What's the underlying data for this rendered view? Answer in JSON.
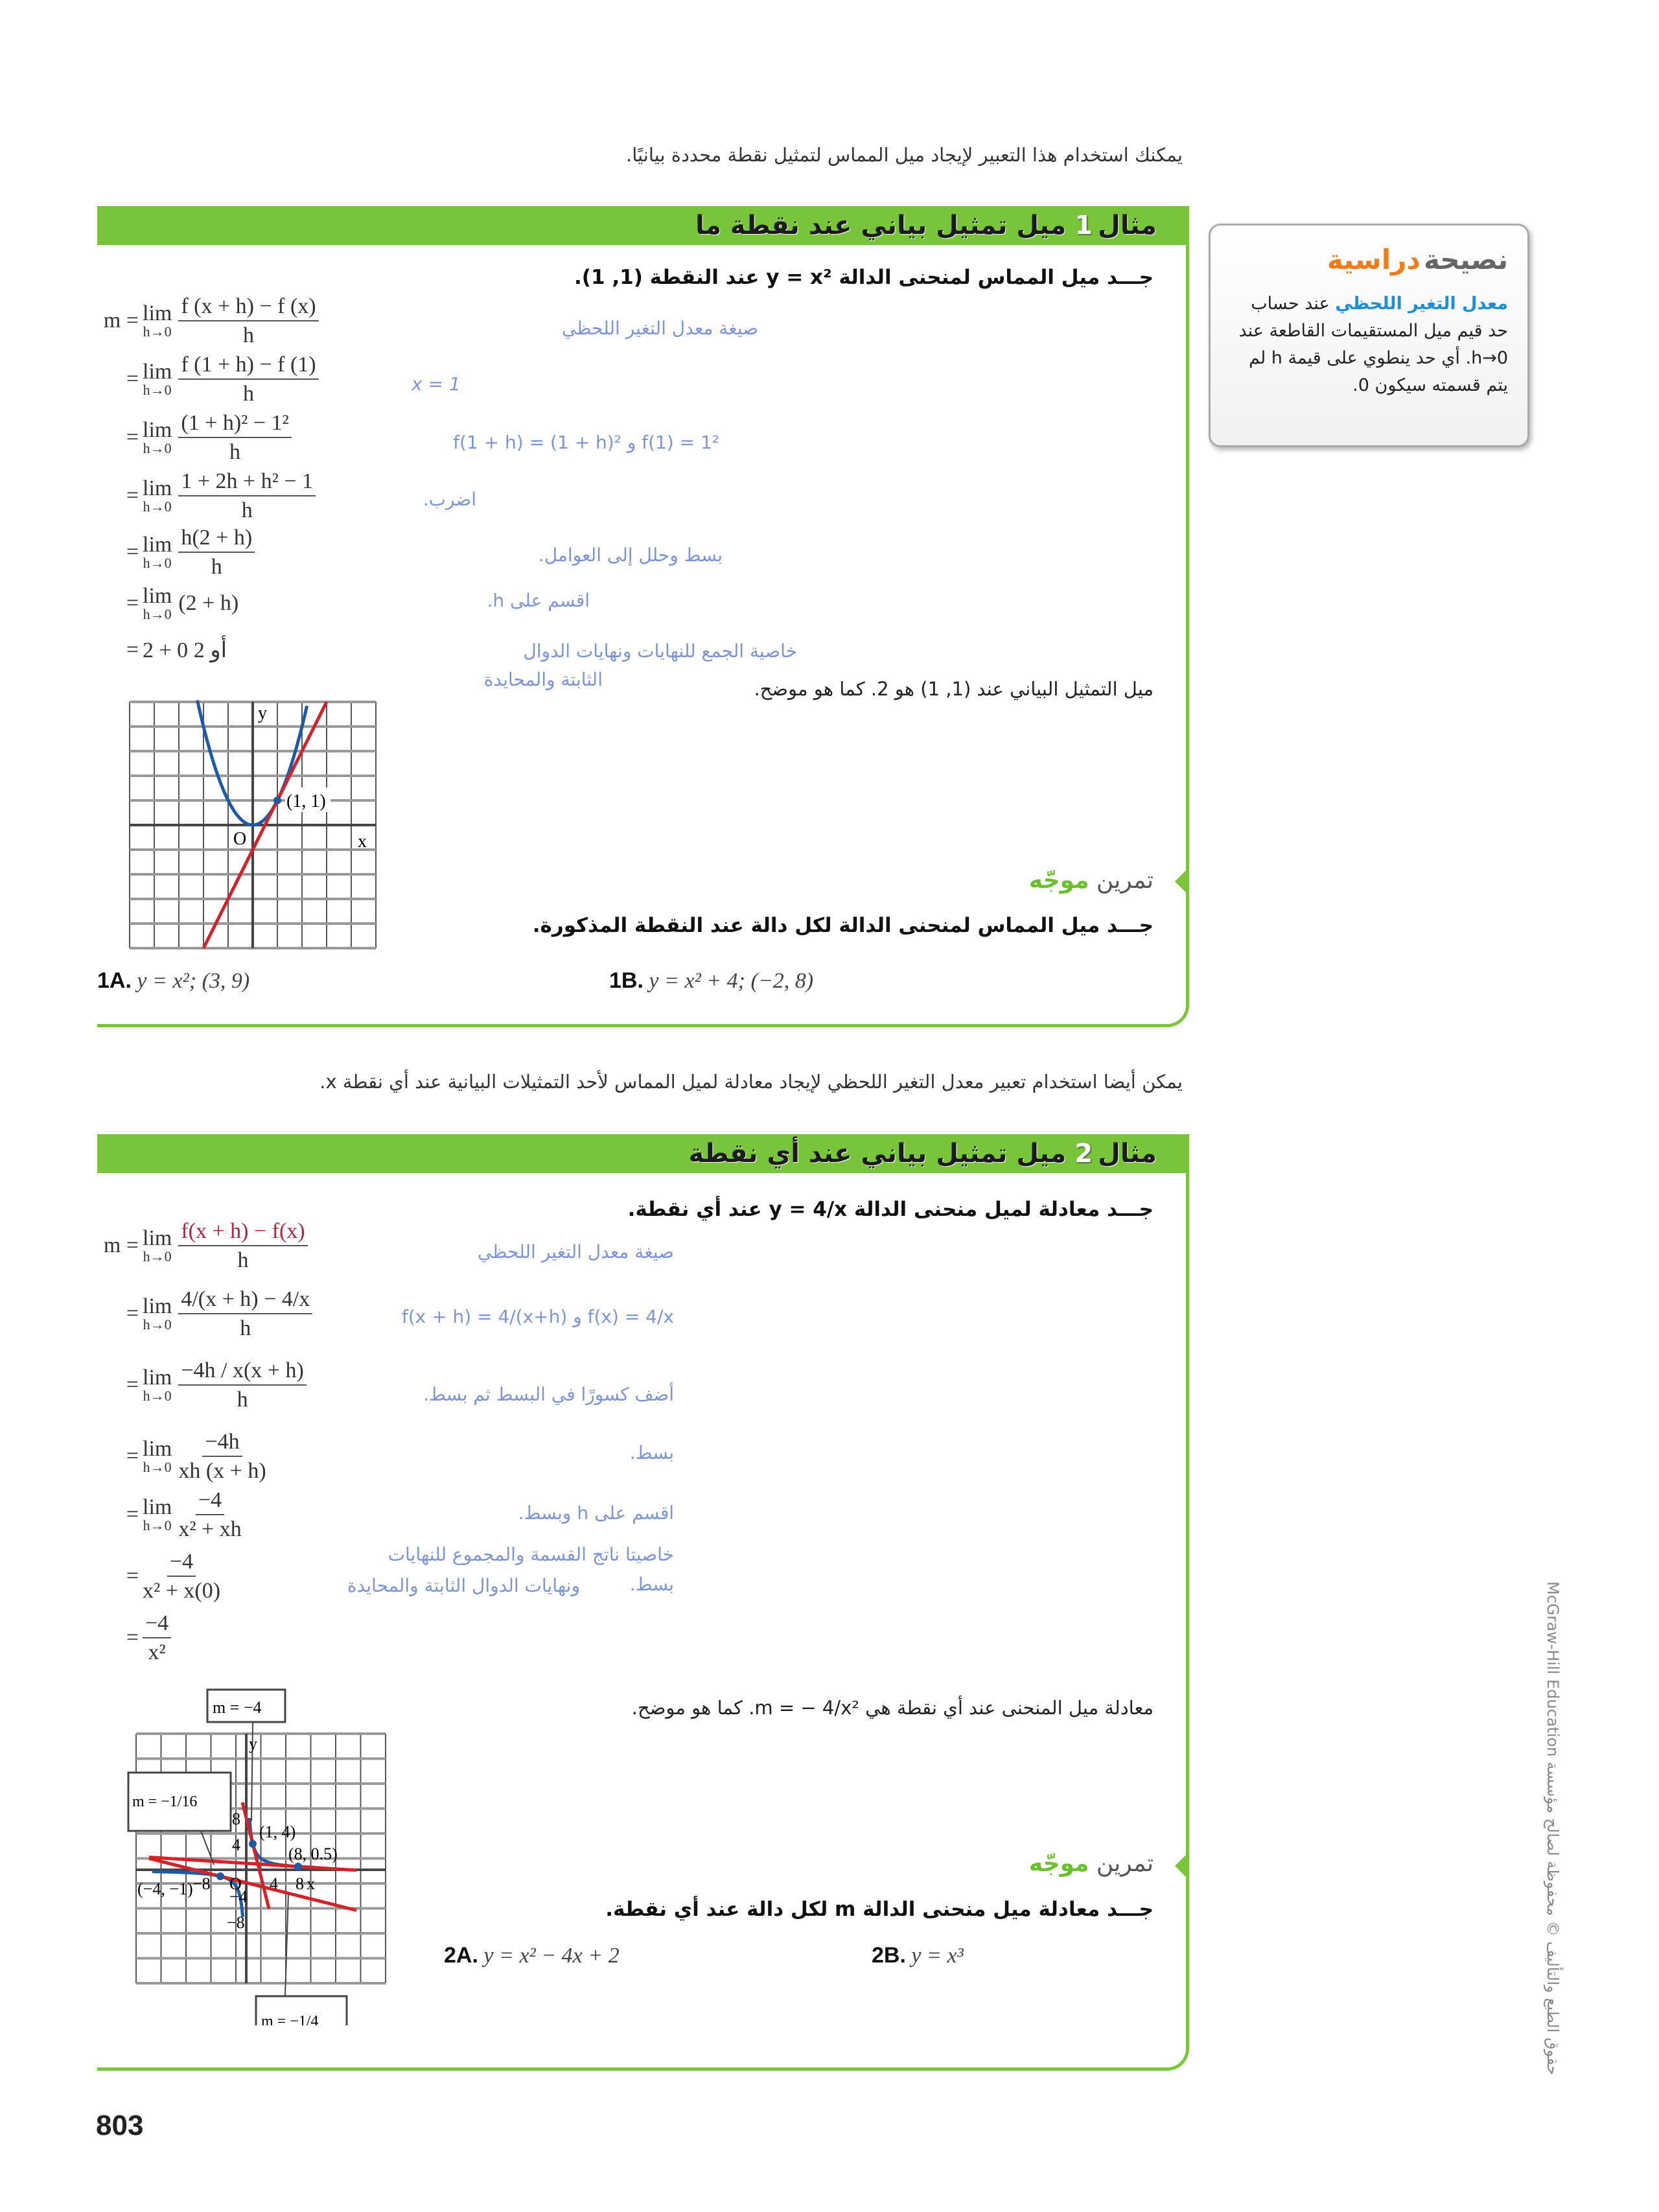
{
  "intro_1": "يمكنك استخدام هذا التعبير لإيجاد ميل المماس لتمثيل نقطة محددة بيانيًا.",
  "example_1": {
    "label": "مثال",
    "number": "1",
    "title": "ميل تمثيل بياني عند نقطة ما",
    "question": "جـــد ميل المماس لمنحنى الدالة y = x² عند النقطة (1, 1).",
    "steps": [
      {
        "lhs": "m =",
        "num": "f (x + h) − f (x)",
        "den": "h",
        "note": "صيغة معدل التغير اللحظي"
      },
      {
        "lhs": "=",
        "num": "f (1 + h) − f (1)",
        "den": "h",
        "note": "x = 1"
      },
      {
        "lhs": "=",
        "num": "(1 + h)² − 1²",
        "den": "h",
        "note": "f(1) = 1² و f(1 + h) = (1 + h)²"
      },
      {
        "lhs": "=",
        "num": "1 + 2h + h² − 1",
        "den": "h",
        "note": "اضرب."
      },
      {
        "lhs": "=",
        "num": "h(2 + h)",
        "den": "h",
        "note": "بسط وحلل إلى العوامل."
      },
      {
        "lhs": "=",
        "expr": "(2 + h)",
        "note": "اقسم على h."
      },
      {
        "lhs": "=",
        "expr": "2 + 0 أو 2",
        "note": "خاصية الجمع للنهايات ونهايات الدوال",
        "note2": "الثابتة والمحايدة"
      }
    ],
    "lim_label": "lim",
    "lim_sub": "h→0",
    "conclusion": "ميل التمثيل البياني عند (1, 1) هو 2. كما هو موضح.",
    "graph": {
      "point_label": "(1, 1)",
      "origin": "O",
      "x_label": "x",
      "y_label": "y",
      "curve_color": "#1f5aa6",
      "tangent_color": "#d2232a"
    },
    "guided_practice": {
      "word1": "تمرين",
      "word2": "موجّه"
    },
    "practice_question": "جـــد ميل المماس لمنحنى الدالة لكل دالة عند النقطة المذكورة.",
    "exercises": [
      {
        "label": "1A.",
        "expr": "y = x²; (3, 9)"
      },
      {
        "label": "1B.",
        "expr": "y = x² + 4; (−2, 8)"
      }
    ]
  },
  "study_tip": {
    "title_1": "نصيحة",
    "title_2": "دراسية",
    "term": "معدل التغير اللحظي",
    "body": "عند حساب حد قيم ميل المستقيمات القاطعة عند h→0. أي حد ينطوي على قيمة h لم يتم قسمته سيكون 0."
  },
  "intro_2": "يمكن أيضا استخدام تعبير معدل التغير اللحظي لإيجاد معادلة لميل المماس لأحد التمثيلات البيانية عند أي نقطة x.",
  "example_2": {
    "label": "مثال",
    "number": "2",
    "title": "ميل تمثيل بياني عند أي نقطة",
    "question": "جـــد معادلة لميل منحنى الدالة y = 4/x عند أي نقطة.",
    "steps": [
      {
        "lhs": "m =",
        "num": "f(x + h) − f(x)",
        "den": "h",
        "lim": true,
        "note": "صيغة معدل التغير اللحظي"
      },
      {
        "lhs": "=",
        "num": "4/(x + h) − 4/x",
        "den": "h",
        "lim": true,
        "note": "f(x) = 4/x و f(x + h) = 4/(x+h)"
      },
      {
        "lhs": "=",
        "num": "−4h / x(x + h)",
        "den": "h",
        "lim": true,
        "note": "أضف كسورًا في البسط ثم بسط."
      },
      {
        "lhs": "=",
        "num": "−4h",
        "den": "xh (x + h)",
        "lim": true,
        "note": "بسط."
      },
      {
        "lhs": "=",
        "num": "−4",
        "den": "x² + xh",
        "lim": true,
        "note": "اقسم على h وبسط."
      },
      {
        "lhs": "=",
        "num": "−4",
        "den": "x² + x(0)",
        "lim": false,
        "note": "خاصيتا ناتج القسمة والمجموع للنهايات",
        "note2": "ونهايات الدوال الثابتة والمحايدة"
      },
      {
        "lhs": "=",
        "num": "−4",
        "den": "x²",
        "lim": false,
        "note": "بسط."
      }
    ],
    "conclusion": "معادلة ميل المنحنى عند أي نقطة هي m = − 4/x². كما هو موضح.",
    "graph": {
      "callouts": [
        "m = −4",
        "m = −1/16",
        "m = −1/4"
      ],
      "points": [
        "(1, 4)",
        "(8, 0.5)",
        "(−4, −1)"
      ],
      "ticks": [
        "8",
        "4",
        "−4",
        "−8"
      ],
      "origin": "O",
      "x_label": "x",
      "y_label": "y",
      "curve_color": "#1f5aa6",
      "tangent_color": "#d2232a"
    },
    "guided_practice": {
      "word1": "تمرين",
      "word2": "موجّه"
    },
    "practice_question": "جـــد معادلة ميل منحنى الدالة m لكل دالة عند أي نقطة.",
    "exercises": [
      {
        "label": "2A.",
        "expr": "y = x² − 4x + 2"
      },
      {
        "label": "2B.",
        "expr": "y = x³"
      }
    ]
  },
  "page_number": "803",
  "copyright": "McGraw-Hill Education حقوق الطبع والتأليف © محفوظة لصالح مؤسسة"
}
